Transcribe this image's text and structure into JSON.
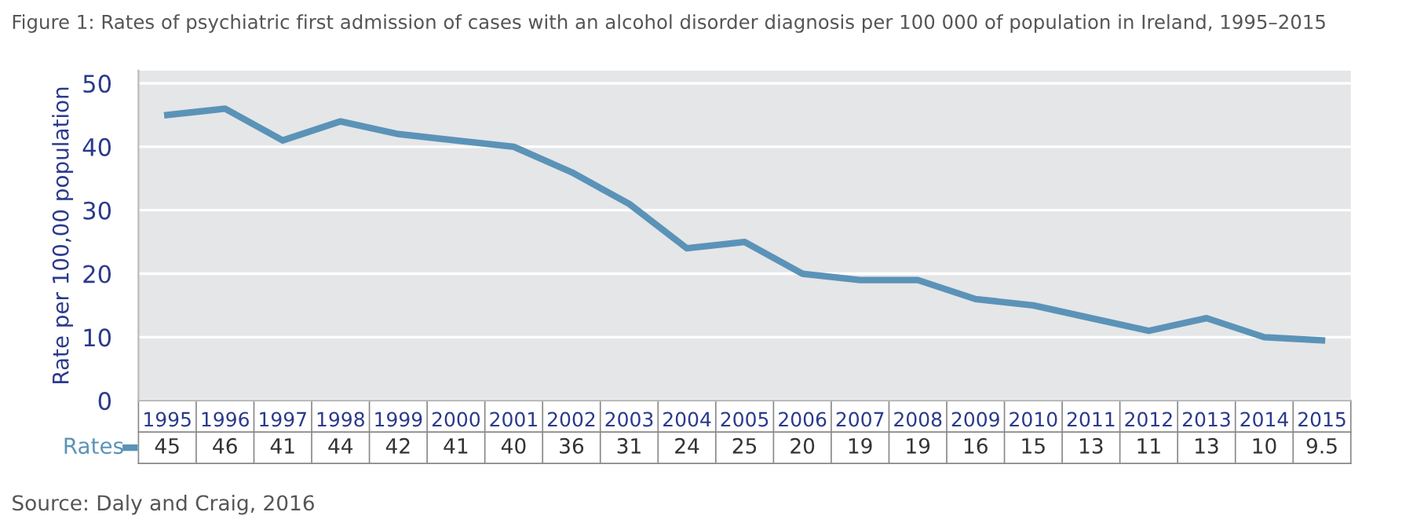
{
  "chart_data": {
    "type": "line",
    "title": "Figure 1: Rates of psychiatric first admission of cases with an alcohol disorder diagnosis per 100 000 of population in Ireland, 1995–2015",
    "ylabel": "Rate per 100,00 population",
    "categories": [
      "1995",
      "1996",
      "1997",
      "1998",
      "1999",
      "2000",
      "2001",
      "2002",
      "2003",
      "2004",
      "2005",
      "2006",
      "2007",
      "2008",
      "2009",
      "2010",
      "2011",
      "2012",
      "2013",
      "2014",
      "2015"
    ],
    "series": [
      {
        "name": "Rates",
        "color": "#5b93b8",
        "values": [
          45,
          46,
          41,
          44,
          42,
          41,
          40,
          36,
          31,
          24,
          25,
          20,
          19,
          19,
          16,
          15,
          13,
          11,
          13,
          10,
          9.5
        ]
      }
    ],
    "ylim": [
      0,
      52
    ],
    "yticks": [
      0,
      10,
      20,
      30,
      40,
      50
    ],
    "grid": "y",
    "legend": "bottom left",
    "data_labels": true,
    "marker": "none",
    "line_style": "solid",
    "annotations": [
      "Source: Daly and Craig, 2016"
    ]
  }
}
